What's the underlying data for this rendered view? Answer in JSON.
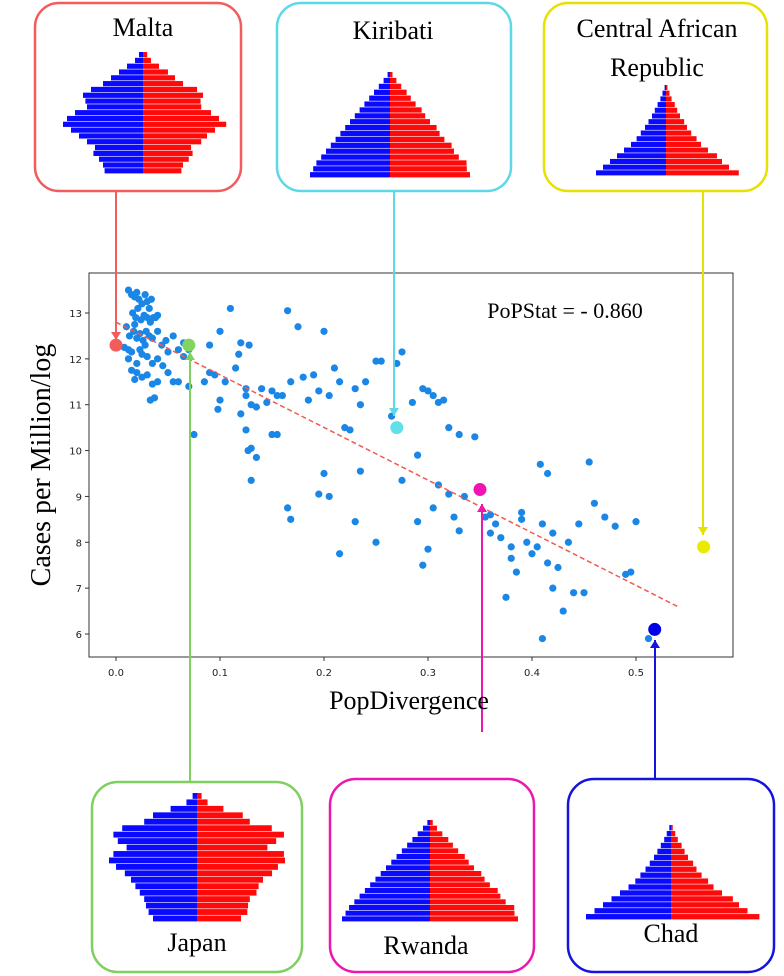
{
  "chart_data": {
    "type": "scatter",
    "title": "",
    "xlabel": "PopDivergence",
    "ylabel": "Cases per Million/log",
    "xlim": [
      -0.03,
      0.59
    ],
    "ylim": [
      5.5,
      13.8
    ],
    "xticks": [
      "0.0",
      "0.1",
      "0.2",
      "0.3",
      "0.4",
      "0.5"
    ],
    "yticks": [
      "6",
      "7",
      "8",
      "9",
      "10",
      "11",
      "12",
      "13"
    ],
    "annotation": "PoPStat = - 0.860",
    "trendline": {
      "x": [
        0.0,
        0.54
      ],
      "y": [
        12.8,
        6.6
      ],
      "color": "#f05a50"
    },
    "point_color": "#1a87e6",
    "points": [
      [
        0.012,
        13.5
      ],
      [
        0.015,
        13.4
      ],
      [
        0.018,
        13.35
      ],
      [
        0.02,
        13.45
      ],
      [
        0.022,
        13.3
      ],
      [
        0.025,
        13.2
      ],
      [
        0.028,
        13.4
      ],
      [
        0.03,
        13.25
      ],
      [
        0.032,
        13.1
      ],
      [
        0.034,
        13.3
      ],
      [
        0.016,
        13.0
      ],
      [
        0.019,
        12.9
      ],
      [
        0.021,
        13.1
      ],
      [
        0.024,
        12.85
      ],
      [
        0.027,
        12.95
      ],
      [
        0.03,
        12.9
      ],
      [
        0.033,
        12.8
      ],
      [
        0.036,
        12.9
      ],
      [
        0.04,
        12.95
      ],
      [
        0.018,
        12.75
      ],
      [
        0.01,
        12.7
      ],
      [
        0.013,
        12.5
      ],
      [
        0.017,
        12.6
      ],
      [
        0.02,
        12.45
      ],
      [
        0.023,
        12.55
      ],
      [
        0.026,
        12.4
      ],
      [
        0.029,
        12.6
      ],
      [
        0.032,
        12.5
      ],
      [
        0.035,
        12.45
      ],
      [
        0.04,
        12.6
      ],
      [
        0.044,
        12.3
      ],
      [
        0.048,
        12.4
      ],
      [
        0.055,
        12.5
      ],
      [
        0.06,
        12.2
      ],
      [
        0.065,
        12.35
      ],
      [
        0.008,
        12.25
      ],
      [
        0.012,
        12.0
      ],
      [
        0.015,
        12.15
      ],
      [
        0.02,
        11.9
      ],
      [
        0.025,
        12.1
      ],
      [
        0.03,
        12.05
      ],
      [
        0.035,
        11.9
      ],
      [
        0.04,
        12.0
      ],
      [
        0.045,
        11.85
      ],
      [
        0.05,
        11.7
      ],
      [
        0.055,
        11.5
      ],
      [
        0.02,
        11.7
      ],
      [
        0.025,
        11.6
      ],
      [
        0.03,
        11.65
      ],
      [
        0.035,
        11.45
      ],
      [
        0.04,
        11.5
      ],
      [
        0.015,
        11.75
      ],
      [
        0.018,
        11.55
      ],
      [
        0.033,
        11.1
      ],
      [
        0.037,
        11.15
      ],
      [
        0.06,
        11.5
      ],
      [
        0.065,
        12.05
      ],
      [
        0.07,
        11.4
      ],
      [
        0.075,
        10.35
      ],
      [
        0.085,
        11.5
      ],
      [
        0.07,
        12.2
      ],
      [
        0.09,
        12.3
      ],
      [
        0.1,
        12.6
      ],
      [
        0.11,
        13.1
      ],
      [
        0.118,
        12.1
      ],
      [
        0.12,
        12.35
      ],
      [
        0.128,
        12.3
      ],
      [
        0.09,
        11.7
      ],
      [
        0.095,
        11.65
      ],
      [
        0.1,
        11.1
      ],
      [
        0.098,
        10.9
      ],
      [
        0.105,
        11.5
      ],
      [
        0.115,
        11.8
      ],
      [
        0.125,
        11.2
      ],
      [
        0.13,
        11.0
      ],
      [
        0.135,
        10.95
      ],
      [
        0.14,
        11.35
      ],
      [
        0.145,
        11.05
      ],
      [
        0.15,
        11.3
      ],
      [
        0.155,
        11.2
      ],
      [
        0.15,
        10.35
      ],
      [
        0.155,
        10.35
      ],
      [
        0.16,
        11.2
      ],
      [
        0.125,
        11.35
      ],
      [
        0.13,
        10.05
      ],
      [
        0.127,
        10.0
      ],
      [
        0.13,
        9.35
      ],
      [
        0.135,
        9.85
      ],
      [
        0.12,
        10.8
      ],
      [
        0.125,
        10.45
      ],
      [
        0.165,
        13.05
      ],
      [
        0.168,
        11.5
      ],
      [
        0.175,
        12.7
      ],
      [
        0.18,
        11.6
      ],
      [
        0.185,
        11.1
      ],
      [
        0.19,
        11.65
      ],
      [
        0.195,
        11.3
      ],
      [
        0.2,
        12.6
      ],
      [
        0.205,
        11.2
      ],
      [
        0.21,
        11.8
      ],
      [
        0.215,
        11.5
      ],
      [
        0.22,
        10.5
      ],
      [
        0.225,
        10.45
      ],
      [
        0.23,
        11.35
      ],
      [
        0.235,
        11.0
      ],
      [
        0.24,
        11.5
      ],
      [
        0.25,
        11.95
      ],
      [
        0.255,
        11.95
      ],
      [
        0.265,
        10.75
      ],
      [
        0.27,
        11.9
      ],
      [
        0.275,
        12.15
      ],
      [
        0.285,
        11.05
      ],
      [
        0.29,
        9.9
      ],
      [
        0.295,
        11.35
      ],
      [
        0.3,
        11.3
      ],
      [
        0.305,
        11.2
      ],
      [
        0.31,
        11.05
      ],
      [
        0.315,
        11.1
      ],
      [
        0.32,
        10.5
      ],
      [
        0.33,
        10.35
      ],
      [
        0.345,
        10.3
      ],
      [
        0.165,
        8.75
      ],
      [
        0.168,
        8.5
      ],
      [
        0.195,
        9.05
      ],
      [
        0.2,
        9.5
      ],
      [
        0.205,
        9.0
      ],
      [
        0.215,
        7.75
      ],
      [
        0.23,
        8.45
      ],
      [
        0.235,
        9.55
      ],
      [
        0.25,
        8.0
      ],
      [
        0.275,
        9.35
      ],
      [
        0.29,
        8.45
      ],
      [
        0.295,
        7.5
      ],
      [
        0.3,
        7.85
      ],
      [
        0.305,
        8.75
      ],
      [
        0.31,
        9.25
      ],
      [
        0.32,
        9.05
      ],
      [
        0.325,
        8.55
      ],
      [
        0.33,
        8.25
      ],
      [
        0.335,
        9.0
      ],
      [
        0.355,
        8.55
      ],
      [
        0.36,
        8.6
      ],
      [
        0.365,
        8.4
      ],
      [
        0.37,
        8.1
      ],
      [
        0.375,
        6.8
      ],
      [
        0.38,
        7.9
      ],
      [
        0.38,
        7.65
      ],
      [
        0.385,
        7.35
      ],
      [
        0.39,
        8.65
      ],
      [
        0.395,
        8.0
      ],
      [
        0.4,
        7.75
      ],
      [
        0.405,
        7.9
      ],
      [
        0.41,
        8.4
      ],
      [
        0.415,
        7.55
      ],
      [
        0.42,
        7.0
      ],
      [
        0.425,
        7.45
      ],
      [
        0.43,
        6.5
      ],
      [
        0.435,
        8.0
      ],
      [
        0.44,
        6.9
      ],
      [
        0.445,
        8.4
      ],
      [
        0.45,
        6.9
      ],
      [
        0.455,
        9.75
      ],
      [
        0.46,
        8.85
      ],
      [
        0.47,
        8.55
      ],
      [
        0.48,
        8.35
      ],
      [
        0.49,
        7.3
      ],
      [
        0.495,
        7.35
      ],
      [
        0.5,
        8.45
      ],
      [
        0.408,
        9.7
      ],
      [
        0.415,
        9.5
      ],
      [
        0.41,
        5.9
      ],
      [
        0.512,
        5.9
      ],
      [
        0.39,
        8.5
      ],
      [
        0.42,
        8.2
      ],
      [
        0.36,
        8.2
      ],
      [
        0.038,
        12.9
      ],
      [
        0.023,
        12.2
      ],
      [
        0.028,
        12.3
      ],
      [
        0.05,
        12.15
      ],
      [
        0.012,
        12.2
      ]
    ],
    "countries": [
      {
        "name": "Malta",
        "name2": "",
        "x": 0.0,
        "y": 12.3,
        "color": "#f25c5c",
        "arrow_color": "#f25c5c",
        "pyramid": "contracting"
      },
      {
        "name": "Kiribati",
        "name2": "",
        "x": 0.27,
        "y": 10.5,
        "color": "#62e0ea",
        "arrow_color": "#5ed8e6",
        "pyramid": "expansive"
      },
      {
        "name": "Central African",
        "name2": "Republic",
        "x": 0.565,
        "y": 7.9,
        "color": "#eaea00",
        "arrow_color": "#e8e000",
        "pyramid": "very-expansive"
      },
      {
        "name": "Japan",
        "name2": "",
        "x": 0.07,
        "y": 12.3,
        "color": "#82d460",
        "arrow_color": "#7ed05f",
        "pyramid": "inverted"
      },
      {
        "name": "Rwanda",
        "name2": "",
        "x": 0.35,
        "y": 9.15,
        "color": "#f014b4",
        "arrow_color": "#ea18b0",
        "pyramid": "expansive"
      },
      {
        "name": "Chad",
        "name2": "",
        "x": 0.518,
        "y": 6.1,
        "color": "#0000e6",
        "arrow_color": "#1414dc",
        "pyramid": "very-expansive"
      }
    ],
    "legend": "none"
  },
  "colors": {
    "male": "#0a0aff",
    "female": "#ff0a0a",
    "frame": "#333333"
  }
}
